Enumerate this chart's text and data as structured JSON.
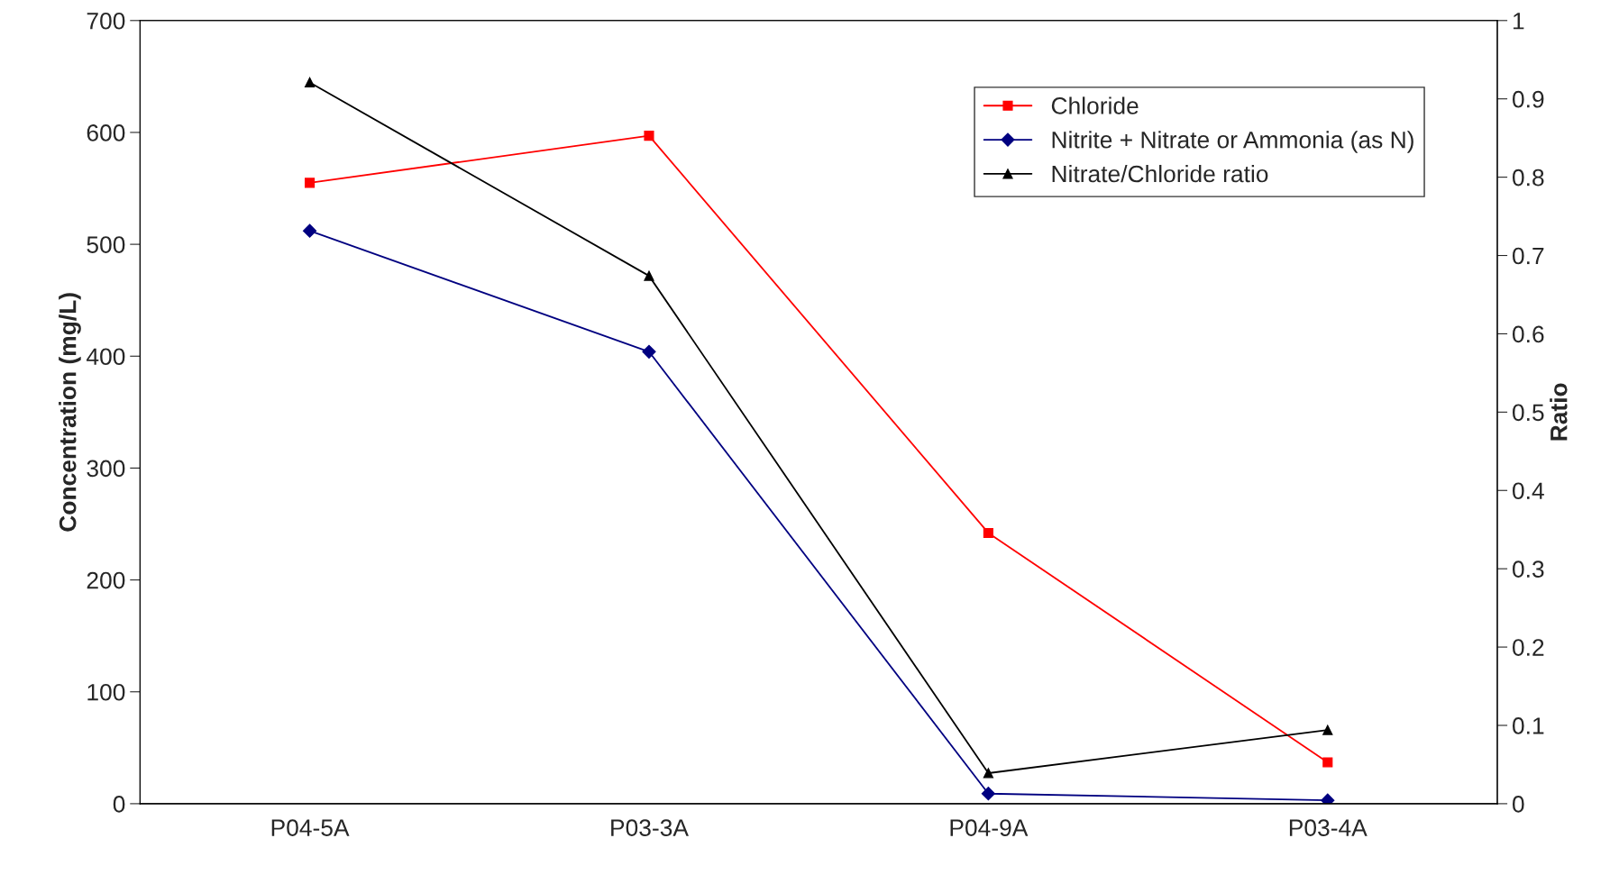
{
  "chart_data": {
    "type": "line",
    "ylabel": "Concentration (mg/L)",
    "y2label": "Ratio",
    "categories": [
      "P04-5A",
      "P03-3A",
      "P04-9A",
      "P03-4A"
    ],
    "ylim": [
      0,
      700
    ],
    "yticks": [
      0,
      100,
      200,
      300,
      400,
      500,
      600,
      700
    ],
    "y2lim": [
      0,
      1
    ],
    "y2ticks": [
      0,
      0.1,
      0.2,
      0.3,
      0.4,
      0.5,
      0.6,
      0.7,
      0.8,
      0.9,
      1
    ],
    "grid": false,
    "legend": "top right",
    "series": [
      {
        "name": "Chloride",
        "color": "#ff0000",
        "marker": "square",
        "values": [
          555,
          597,
          242,
          37
        ]
      },
      {
        "name": "Nitrite + Nitrate or Ammonia (as N)",
        "color": "#000080",
        "marker": "diamond",
        "values": [
          512,
          404,
          9,
          3
        ]
      },
      {
        "name": "Nitrate/Chloride ratio",
        "color": "#000000",
        "marker": "triangle",
        "axis": "y2",
        "values": [
          0.921,
          0.674,
          0.039,
          0.094
        ]
      }
    ]
  }
}
